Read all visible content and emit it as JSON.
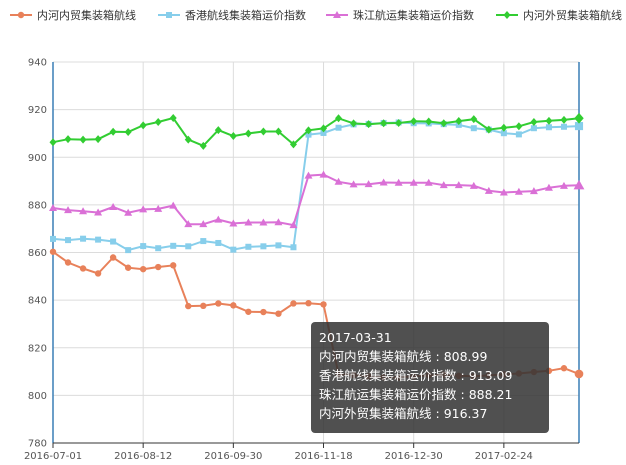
{
  "chart_data": {
    "type": "line",
    "title": "",
    "xlabel": "",
    "ylabel": "",
    "ylim": [
      780,
      940
    ],
    "yticks": [
      780,
      800,
      820,
      840,
      860,
      880,
      900,
      920,
      940
    ],
    "grid": true,
    "legend_position": "top",
    "x_tick_labels": [
      "2016-07-01",
      "2016-08-12",
      "2016-09-30",
      "2016-11-18",
      "2016-12-30",
      "2017-02-24"
    ],
    "x_tick_indices": [
      0,
      6,
      12,
      18,
      24,
      30
    ],
    "series": [
      {
        "name": "内河内贸集装箱航线",
        "color": "#e8815a",
        "marker": "circle",
        "values": [
          860.3,
          855.8,
          853.3,
          851.2,
          857.9,
          853.6,
          853.0,
          853.9,
          854.6,
          837.5,
          837.6,
          838.6,
          837.8,
          835.1,
          835.0,
          834.3,
          838.6,
          838.7,
          838.2,
          808.99,
          808.5,
          808.0,
          807.6,
          807.5,
          808.0,
          808.4,
          808.7,
          808.2,
          808.0,
          808.4,
          808.8,
          809.2,
          809.8,
          810.3,
          811.4,
          808.99
        ]
      },
      {
        "name": "香港航线集装箱运价指数",
        "color": "#87ceeb",
        "marker": "square",
        "values": [
          865.7,
          865.2,
          865.8,
          865.4,
          864.6,
          861.0,
          862.7,
          861.8,
          862.8,
          862.6,
          864.8,
          864.0,
          861.2,
          862.4,
          862.6,
          863.0,
          862.2,
          909.5,
          910.2,
          912.4,
          913.8,
          914.0,
          914.4,
          914.6,
          914.3,
          914.2,
          913.9,
          913.6,
          912.2,
          911.6,
          910.1,
          909.6,
          912.2,
          912.6,
          912.8,
          913.09
        ]
      },
      {
        "name": "珠江航运集装箱运价指数",
        "color": "#da70d6",
        "marker": "triangle",
        "values": [
          878.7,
          877.8,
          877.3,
          876.8,
          879.1,
          876.7,
          878.1,
          878.3,
          879.7,
          871.9,
          871.9,
          873.8,
          872.2,
          872.6,
          872.6,
          872.7,
          871.5,
          892.3,
          892.7,
          889.7,
          888.6,
          888.7,
          889.4,
          889.3,
          889.3,
          889.3,
          888.3,
          888.3,
          888.0,
          885.9,
          885.2,
          885.5,
          885.8,
          887.2,
          888.0,
          888.21
        ]
      },
      {
        "name": "内河外贸集装箱航线",
        "color": "#32cd32",
        "marker": "diamond",
        "values": [
          906.3,
          907.6,
          907.4,
          907.6,
          910.7,
          910.6,
          913.4,
          914.8,
          916.5,
          907.4,
          904.8,
          911.4,
          908.9,
          910.0,
          910.8,
          910.8,
          905.4,
          911.3,
          912.1,
          916.37,
          914.2,
          913.9,
          914.3,
          914.4,
          915.1,
          915.0,
          914.3,
          915.2,
          916.0,
          911.6,
          912.4,
          913.0,
          914.8,
          915.3,
          915.7,
          916.37
        ]
      }
    ]
  },
  "tooltip": {
    "date": "2017-03-31",
    "rows": [
      {
        "label": "内河内贸集装箱航线",
        "value": "808.99"
      },
      {
        "label": "香港航线集装箱运价指数",
        "value": "913.09"
      },
      {
        "label": "珠江航运集装箱运价指数",
        "value": "888.21"
      },
      {
        "label": "内河外贸集装箱航线",
        "value": "916.37"
      }
    ]
  }
}
